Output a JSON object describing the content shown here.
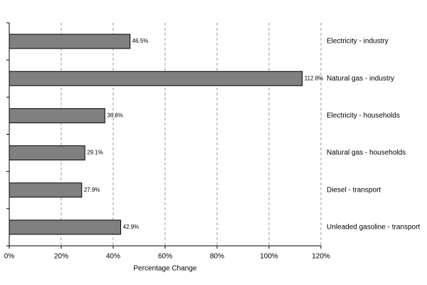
{
  "chart_data": {
    "type": "bar",
    "orientation": "horizontal",
    "x_label": "Percentage Change",
    "categories": [
      "Electricity - industry",
      "Natural gas - industry",
      "Electricity - households",
      "Natural gas - households",
      "Diesel - transport",
      "Unleaded gasoline - transport"
    ],
    "values": [
      46.5,
      112.8,
      36.8,
      29.1,
      27.9,
      42.9
    ],
    "value_labels": [
      "46.5%",
      "112.8%",
      "36.8%",
      "29.1%",
      "27.9%",
      "42.9%"
    ],
    "color": "#808080",
    "xlim": [
      0,
      120
    ],
    "xticks": [
      {
        "value": 0,
        "label": "0%"
      },
      {
        "value": 20,
        "label": "20%"
      },
      {
        "value": 40,
        "label": "40%"
      },
      {
        "value": 60,
        "label": "60%"
      },
      {
        "value": 80,
        "label": "80%"
      },
      {
        "value": 100,
        "label": "100%"
      },
      {
        "value": 120,
        "label": "120%"
      }
    ],
    "grid": true
  }
}
